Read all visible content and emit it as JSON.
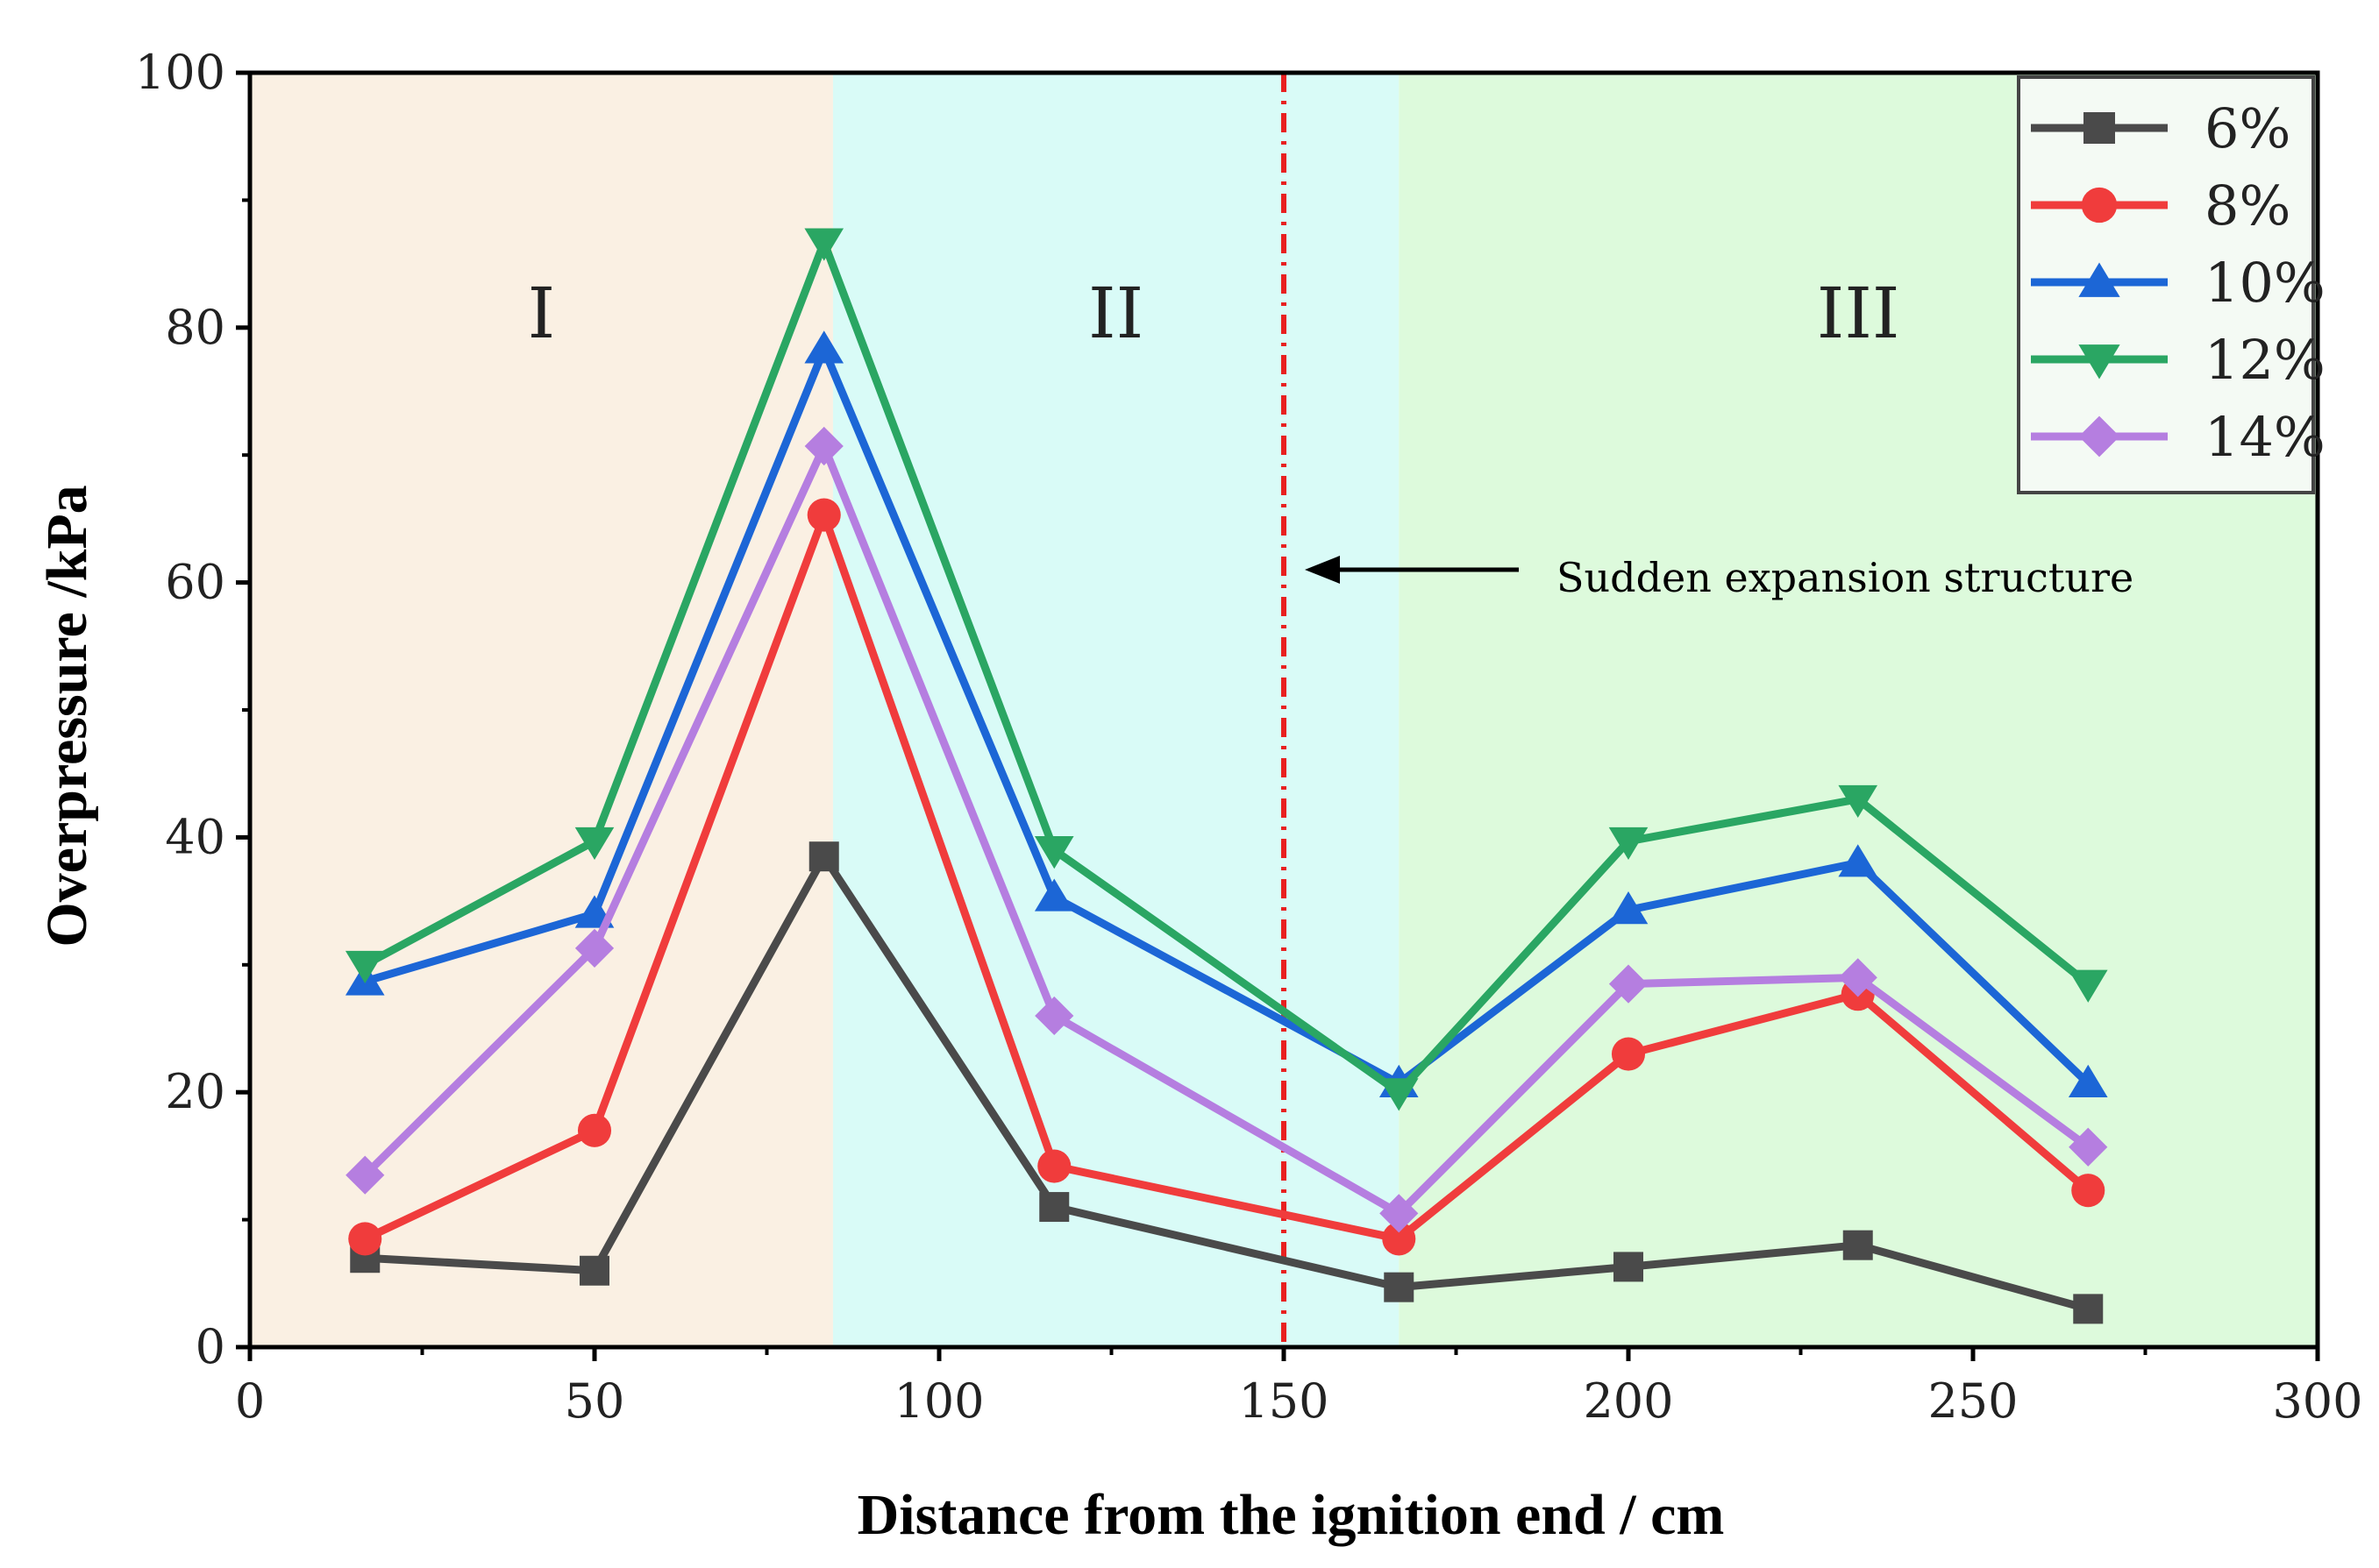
{
  "chart_data": {
    "type": "line",
    "xlabel": "Distance from the ignition end / cm",
    "ylabel": "Overpressure /kPa",
    "xlim": [
      0,
      300
    ],
    "ylim": [
      0,
      100
    ],
    "xticks": [
      0,
      50,
      100,
      150,
      200,
      250,
      300
    ],
    "yticks": [
      0,
      20,
      40,
      60,
      80,
      100
    ],
    "x": [
      16.7,
      50,
      83.3,
      116.7,
      166.7,
      200,
      233.3,
      266.7
    ],
    "series": [
      {
        "name": "6%",
        "color": "#4a4a4a",
        "marker": "square",
        "values": [
          7.0,
          6.0,
          38.5,
          11.0,
          4.7,
          6.3,
          8.0,
          3.0
        ]
      },
      {
        "name": "8%",
        "color": "#f03c3c",
        "marker": "circle",
        "values": [
          8.5,
          17.0,
          65.3,
          14.2,
          8.5,
          23.0,
          27.7,
          12.3
        ]
      },
      {
        "name": "10%",
        "color": "#1c66d6",
        "marker": "triangle-up",
        "values": [
          28.7,
          34.0,
          78.3,
          35.3,
          20.7,
          34.3,
          38.0,
          20.7
        ]
      },
      {
        "name": "12%",
        "color": "#2aa663",
        "marker": "triangle-down",
        "values": [
          30.0,
          39.7,
          86.7,
          39.0,
          20.0,
          39.7,
          43.0,
          28.5
        ]
      },
      {
        "name": "14%",
        "color": "#b57ee0",
        "marker": "diamond",
        "values": [
          13.5,
          31.3,
          70.7,
          26.0,
          10.5,
          28.5,
          29.0,
          15.7
        ]
      }
    ],
    "regions": [
      {
        "label": "I",
        "from": 0,
        "to": 84.6,
        "color": "#faf0e3"
      },
      {
        "label": "II",
        "from": 84.6,
        "to": 166.7,
        "color": "#d9fbf7"
      },
      {
        "label": "III",
        "from": 166.7,
        "to": 300,
        "color": "#ddfadc"
      }
    ],
    "annotation": {
      "text": "Sudden expansion structure",
      "x": 150
    },
    "legend": "top-right"
  }
}
